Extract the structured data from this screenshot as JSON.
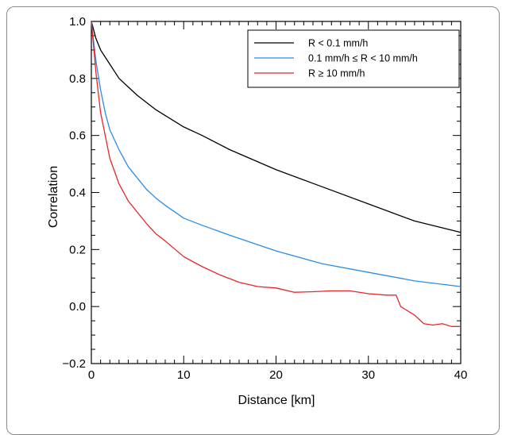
{
  "chart_data": {
    "type": "line",
    "title": "",
    "xlabel": "Distance [km]",
    "ylabel": "Correlation",
    "xlim": [
      0,
      40
    ],
    "ylim": [
      -0.2,
      1.0
    ],
    "x_ticks": [
      0,
      10,
      20,
      30,
      40
    ],
    "x_tick_labels": [
      "0",
      "10",
      "20",
      "30",
      "40"
    ],
    "y_ticks": [
      -0.2,
      0.0,
      0.2,
      0.4,
      0.6,
      0.8,
      1.0
    ],
    "y_tick_labels": [
      "−0.2",
      "0.0",
      "0.2",
      "0.4",
      "0.6",
      "0.8",
      "1.0"
    ],
    "grid": false,
    "legend_position": "top-right",
    "series": [
      {
        "name": "R < 0.1 mm/h",
        "color": "#000000",
        "points": [
          [
            0,
            1.0
          ],
          [
            0.5,
            0.94
          ],
          [
            1,
            0.9
          ],
          [
            2,
            0.85
          ],
          [
            3,
            0.8
          ],
          [
            4,
            0.77
          ],
          [
            5,
            0.74
          ],
          [
            6,
            0.715
          ],
          [
            7,
            0.69
          ],
          [
            8,
            0.67
          ],
          [
            10,
            0.63
          ],
          [
            12,
            0.6
          ],
          [
            15,
            0.55
          ],
          [
            20,
            0.48
          ],
          [
            25,
            0.42
          ],
          [
            30,
            0.36
          ],
          [
            35,
            0.3
          ],
          [
            40,
            0.26
          ]
        ]
      },
      {
        "name": "0.1 mm/h ≤ R < 10 mm/h",
        "color": "#2a8ce8",
        "points": [
          [
            0,
            1.0
          ],
          [
            0.5,
            0.86
          ],
          [
            1,
            0.76
          ],
          [
            1.5,
            0.68
          ],
          [
            2,
            0.62
          ],
          [
            3,
            0.55
          ],
          [
            4,
            0.49
          ],
          [
            5,
            0.45
          ],
          [
            6,
            0.41
          ],
          [
            7,
            0.38
          ],
          [
            8,
            0.355
          ],
          [
            10,
            0.31
          ],
          [
            12,
            0.285
          ],
          [
            15,
            0.25
          ],
          [
            20,
            0.195
          ],
          [
            25,
            0.15
          ],
          [
            30,
            0.12
          ],
          [
            35,
            0.09
          ],
          [
            40,
            0.07
          ]
        ]
      },
      {
        "name": "R ≥ 10 mm/h",
        "color": "#e8262a",
        "points": [
          [
            0,
            1.0
          ],
          [
            0.5,
            0.82
          ],
          [
            1,
            0.68
          ],
          [
            1.5,
            0.6
          ],
          [
            2,
            0.52
          ],
          [
            3,
            0.43
          ],
          [
            4,
            0.37
          ],
          [
            5,
            0.33
          ],
          [
            6,
            0.29
          ],
          [
            7,
            0.255
          ],
          [
            8,
            0.23
          ],
          [
            10,
            0.175
          ],
          [
            12,
            0.14
          ],
          [
            14,
            0.11
          ],
          [
            16,
            0.085
          ],
          [
            18,
            0.07
          ],
          [
            20,
            0.065
          ],
          [
            22,
            0.05
          ],
          [
            24,
            0.052
          ],
          [
            26,
            0.055
          ],
          [
            28,
            0.055
          ],
          [
            30,
            0.045
          ],
          [
            32,
            0.04
          ],
          [
            33,
            0.04
          ],
          [
            33.5,
            0.0
          ],
          [
            35,
            -0.03
          ],
          [
            36,
            -0.06
          ],
          [
            37,
            -0.065
          ],
          [
            38,
            -0.06
          ],
          [
            39,
            -0.07
          ],
          [
            40,
            -0.07
          ]
        ]
      }
    ]
  }
}
